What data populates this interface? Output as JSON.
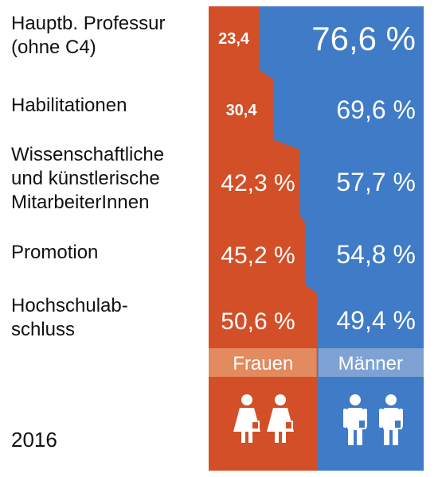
{
  "year": "2016",
  "colors": {
    "frauen": "#d24f27",
    "maenner": "#3f7bc6",
    "frauen_header": "#e38a5e",
    "maenner_header": "#7ea2d3",
    "frauen_text": "#f6c3aa",
    "maenner_text": "#c6d8f2"
  },
  "icons": {
    "frauen": "woman-icon",
    "maenner": "man-icon"
  },
  "chart_data": {
    "type": "bar",
    "stacked": true,
    "percent": true,
    "categories": [
      "Hauptb. Professur\n(ohne C4)",
      "Habilitationen",
      "Wissenschaftliche\nund künstlerische\nMitarbeiterInnen",
      "Promotion",
      "Hochschulab-\nschluss"
    ],
    "series": [
      {
        "name": "Frauen",
        "values": [
          23.4,
          30.4,
          42.3,
          45.2,
          50.6
        ],
        "labels": [
          "23,4",
          "30,4",
          "42,3 %",
          "45,2 %",
          "50,6 %"
        ]
      },
      {
        "name": "Männer",
        "values": [
          76.6,
          69.6,
          57.7,
          54.8,
          49.4
        ],
        "labels": [
          "76,6 %",
          "69,6 %",
          "57,7 %",
          "54,8 %",
          "49,4 %"
        ]
      }
    ],
    "ylim": [
      0,
      100
    ]
  }
}
